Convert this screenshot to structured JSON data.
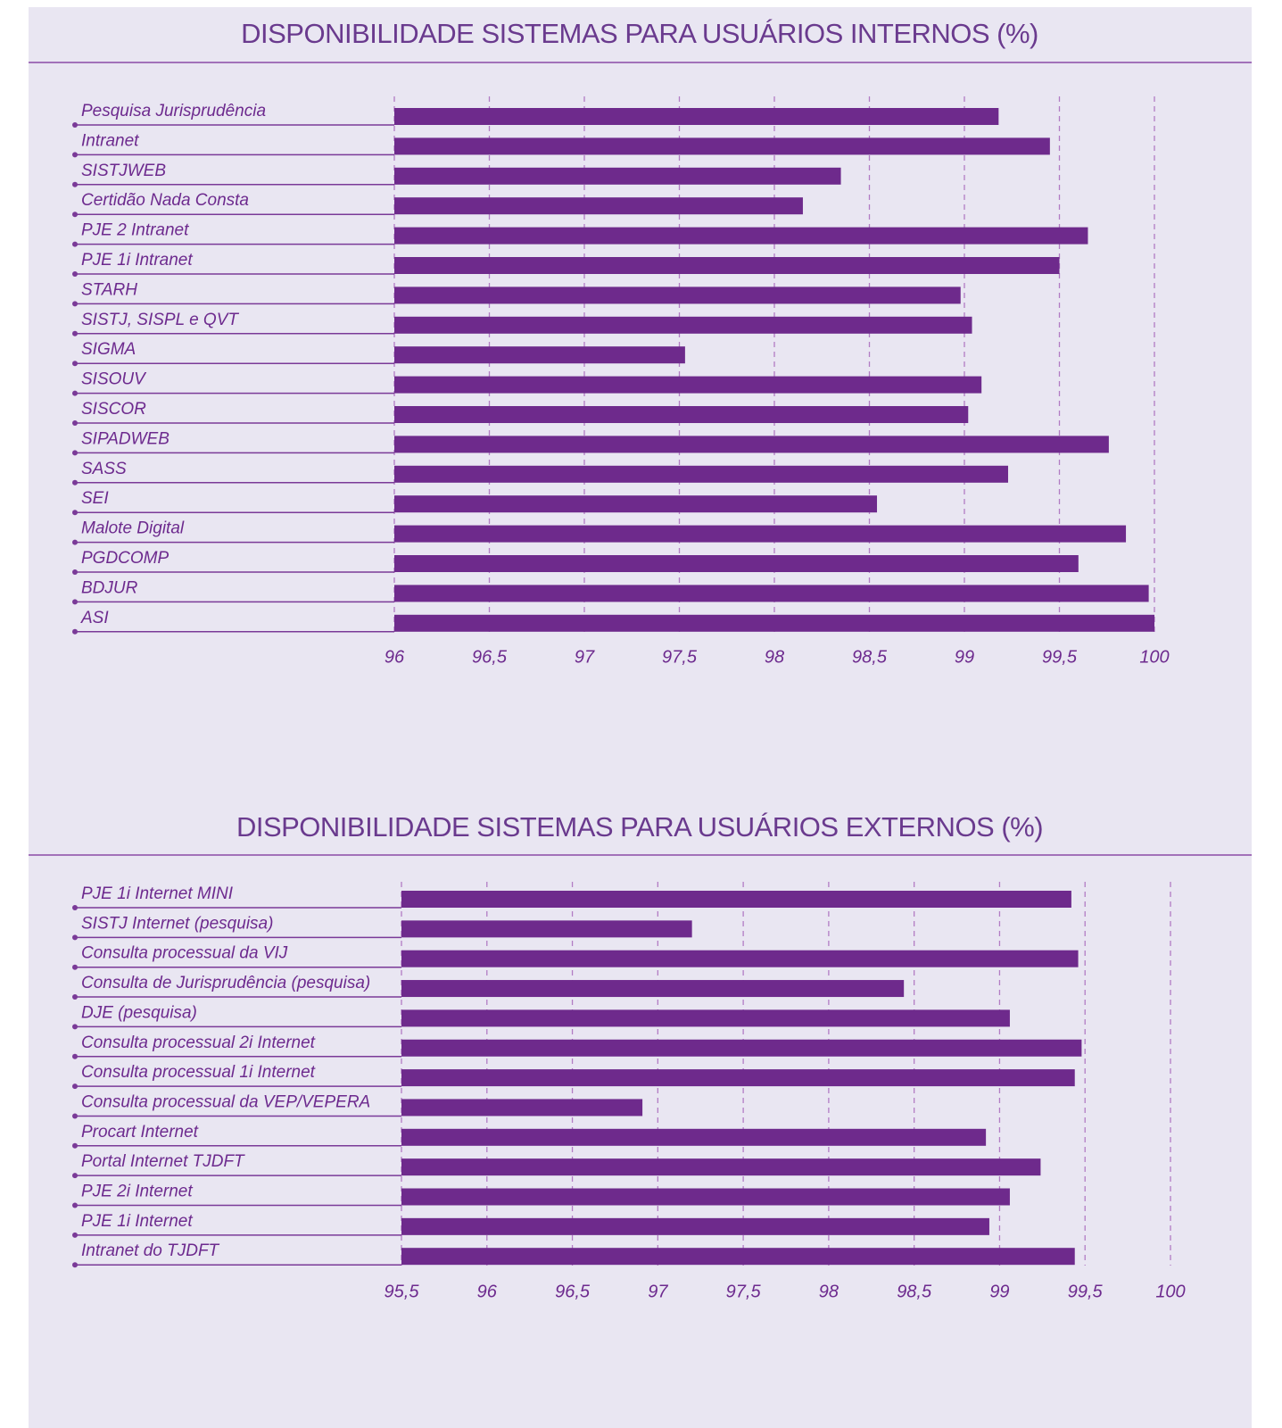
{
  "chart_data": [
    {
      "type": "hbar",
      "title": "DISPONIBILIDADE SISTEMAS PARA USUÁRIOS INTERNOS (%)",
      "color": "#6e2a8c",
      "grid": true,
      "categories": [
        "Pesquisa Jurisprudência",
        "Intranet",
        "SISTJWEB",
        "Certidão Nada Consta",
        "PJE 2 Intranet",
        "PJE 1i Intranet",
        "STARH",
        "SISTJ, SISPL e QVT",
        "SIGMA",
        "SISOUV",
        "SISCOR",
        "SIPADWEB",
        "SASS",
        "SEI",
        "Malote Digital",
        "PGDCOMP",
        "BDJUR",
        "ASI"
      ],
      "values": [
        99.18,
        99.45,
        98.35,
        98.15,
        99.65,
        99.5,
        98.98,
        99.04,
        97.53,
        99.09,
        99.02,
        99.76,
        99.23,
        98.54,
        99.85,
        99.6,
        99.97,
        100
      ],
      "xlim": [
        96,
        100
      ],
      "xticks": [
        96,
        {
          "value": 96.5,
          "label": "96,5"
        },
        97,
        {
          "value": 97.5,
          "label": "97,5"
        },
        98,
        {
          "value": 98.5,
          "label": "98,5"
        },
        99,
        {
          "value": 99.5,
          "label": "99,5"
        },
        100
      ]
    },
    {
      "type": "hbar",
      "title": "DISPONIBILIDADE SISTEMAS PARA USUÁRIOS EXTERNOS (%)",
      "color": "#6e2a8c",
      "grid": true,
      "categories": [
        "PJE 1i Internet MINI",
        "SISTJ Internet (pesquisa)",
        "Consulta processual da VIJ",
        "Consulta de Jurisprudência (pesquisa)",
        "DJE (pesquisa)",
        "Consulta processual 2i Internet",
        "Consulta processual 1i Internet",
        "Consulta processual da VEP/VEPERA",
        "Procart Internet",
        "Portal Internet TJDFT",
        "PJE 2i Internet",
        "PJE 1i Internet",
        "Intranet do TJDFT"
      ],
      "values": [
        99.42,
        97.2,
        99.46,
        98.44,
        99.06,
        99.48,
        99.44,
        96.91,
        98.92,
        99.24,
        99.06,
        98.94,
        99.44
      ],
      "xlim": [
        95.5,
        100
      ],
      "xticks": [
        {
          "value": 95.5,
          "label": "95,5"
        },
        96,
        {
          "value": 96.5,
          "label": "96,5"
        },
        97,
        {
          "value": 97.5,
          "label": "97,5"
        },
        98,
        {
          "value": 98.5,
          "label": "98,5"
        },
        99,
        {
          "value": 99.5,
          "label": "99,5"
        },
        100
      ]
    }
  ]
}
